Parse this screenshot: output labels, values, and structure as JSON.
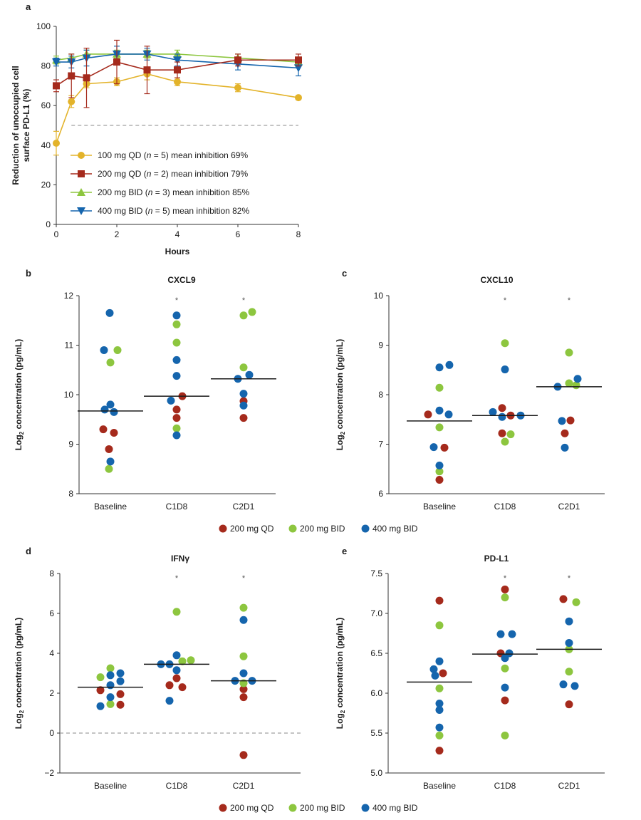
{
  "colors": {
    "qd100": "#e3b32a",
    "qd200": "#a52a1c",
    "bid200": "#8dc63f",
    "bid400": "#1565ad",
    "axis": "#333333",
    "dash": "#8a8a8a"
  },
  "chart_data": [
    {
      "panel_letter": "a",
      "type": "line",
      "xlabel": "Hours",
      "ylabel_lines": [
        "Reduction of unoccupied cell",
        "surface PD-L1 (%)"
      ],
      "xlim": [
        0,
        8
      ],
      "ylim": [
        0,
        100
      ],
      "xticks": [
        "0",
        "2",
        "4",
        "6",
        "8"
      ],
      "yticks": [
        "0",
        "20",
        "40",
        "60",
        "80",
        "100"
      ],
      "reference_line": 50,
      "series": [
        {
          "key": "qd100",
          "marker": "circle",
          "legend_pre": "100 mg QD (",
          "legend_n": "n",
          "legend_post": " = 5) mean inhibition 69%",
          "x": [
            0,
            0.5,
            1,
            2,
            3,
            4,
            6,
            8
          ],
          "y": [
            41,
            62,
            71,
            72,
            76,
            72,
            69,
            64
          ],
          "err": [
            6,
            3,
            2,
            2,
            3,
            2,
            2,
            1
          ]
        },
        {
          "key": "qd200",
          "marker": "square",
          "legend_pre": "200 mg QD (",
          "legend_n": "n",
          "legend_post": " = 2) mean inhibition 79%",
          "x": [
            0,
            0.5,
            1,
            2,
            3,
            4,
            6,
            8
          ],
          "y": [
            70,
            75,
            74,
            82,
            78,
            78,
            83,
            83
          ],
          "err": [
            3,
            11,
            15,
            11,
            12,
            4,
            3,
            3
          ]
        },
        {
          "key": "bid200",
          "marker": "triangle-up",
          "legend_pre": "200 mg BID (",
          "legend_n": "n",
          "legend_post": " = 3) mean inhibition 85%",
          "x": [
            0,
            0.5,
            1,
            2,
            3,
            4,
            6,
            8
          ],
          "y": [
            83,
            84,
            86,
            86,
            86,
            86,
            84,
            82
          ],
          "err": [
            2,
            2,
            2,
            2,
            2,
            2,
            2,
            2
          ]
        },
        {
          "key": "bid400",
          "marker": "triangle-down",
          "legend_pre": "400 mg BID (",
          "legend_n": "n",
          "legend_post": " = 5) mean inhibition 82%",
          "x": [
            0,
            0.5,
            1,
            2,
            3,
            4,
            6,
            8
          ],
          "y": [
            82,
            82,
            84,
            86,
            86,
            83,
            81,
            79
          ],
          "err": [
            2,
            3,
            4,
            4,
            3,
            3,
            3,
            4
          ]
        }
      ]
    },
    {
      "panel_letter": "b",
      "type": "scatter",
      "title": "CXCL9",
      "categories": [
        "Baseline",
        "C1D8",
        "C2D1"
      ],
      "ylim": [
        8,
        12
      ],
      "yticks": [
        "8",
        "9",
        "10",
        "11",
        "12"
      ],
      "significance": [
        "",
        "*",
        "*"
      ],
      "medians": [
        9.67,
        9.97,
        10.32
      ],
      "points": [
        {
          "c": 0,
          "dx": -10,
          "y": 9.3,
          "g": "qd200"
        },
        {
          "c": 0,
          "dx": 5,
          "y": 9.23,
          "g": "qd200"
        },
        {
          "c": 0,
          "dx": -2,
          "y": 8.9,
          "g": "qd200"
        },
        {
          "c": 0,
          "dx": 10,
          "y": 10.9,
          "g": "bid200"
        },
        {
          "c": 0,
          "dx": 0,
          "y": 10.65,
          "g": "bid200"
        },
        {
          "c": 0,
          "dx": -2,
          "y": 8.5,
          "g": "bid200"
        },
        {
          "c": 0,
          "dx": -1,
          "y": 11.65,
          "g": "bid400"
        },
        {
          "c": 0,
          "dx": -9,
          "y": 10.9,
          "g": "bid400"
        },
        {
          "c": 0,
          "dx": 0,
          "y": 9.8,
          "g": "bid400"
        },
        {
          "c": 0,
          "dx": -8,
          "y": 9.7,
          "g": "bid400"
        },
        {
          "c": 0,
          "dx": 5,
          "y": 9.65,
          "g": "bid400"
        },
        {
          "c": 0,
          "dx": 0,
          "y": 8.65,
          "g": "bid400"
        },
        {
          "c": 1,
          "dx": 8,
          "y": 9.97,
          "g": "qd200"
        },
        {
          "c": 1,
          "dx": 0,
          "y": 9.7,
          "g": "qd200"
        },
        {
          "c": 1,
          "dx": 0,
          "y": 9.53,
          "g": "qd200"
        },
        {
          "c": 1,
          "dx": 0,
          "y": 11.42,
          "g": "bid200"
        },
        {
          "c": 1,
          "dx": 0,
          "y": 11.05,
          "g": "bid200"
        },
        {
          "c": 1,
          "dx": 0,
          "y": 9.32,
          "g": "bid200"
        },
        {
          "c": 1,
          "dx": 0,
          "y": 11.6,
          "g": "bid400"
        },
        {
          "c": 1,
          "dx": 0,
          "y": 10.7,
          "g": "bid400"
        },
        {
          "c": 1,
          "dx": 0,
          "y": 10.38,
          "g": "bid400"
        },
        {
          "c": 1,
          "dx": -8,
          "y": 9.88,
          "g": "bid400"
        },
        {
          "c": 1,
          "dx": 0,
          "y": 9.18,
          "g": "bid400"
        },
        {
          "c": 2,
          "dx": 0,
          "y": 9.87,
          "g": "qd200"
        },
        {
          "c": 2,
          "dx": 0,
          "y": 9.53,
          "g": "qd200"
        },
        {
          "c": 2,
          "dx": 0,
          "y": 11.6,
          "g": "bid200"
        },
        {
          "c": 2,
          "dx": 12,
          "y": 11.67,
          "g": "bid200"
        },
        {
          "c": 2,
          "dx": 0,
          "y": 10.55,
          "g": "bid200"
        },
        {
          "c": 2,
          "dx": 8,
          "y": 10.4,
          "g": "bid400"
        },
        {
          "c": 2,
          "dx": -8,
          "y": 10.32,
          "g": "bid400"
        },
        {
          "c": 2,
          "dx": 0,
          "y": 10.02,
          "g": "bid400"
        },
        {
          "c": 2,
          "dx": 0,
          "y": 9.78,
          "g": "bid400"
        }
      ]
    },
    {
      "panel_letter": "c",
      "type": "scatter",
      "title": "CXCL10",
      "categories": [
        "Baseline",
        "C1D8",
        "C2D1"
      ],
      "ylim": [
        6,
        10
      ],
      "yticks": [
        "6",
        "7",
        "8",
        "9",
        "10"
      ],
      "significance": [
        "",
        "*",
        "*"
      ],
      "medians": [
        7.47,
        7.58,
        8.16
      ],
      "points": [
        {
          "c": 0,
          "dx": -16,
          "y": 7.6,
          "g": "qd200"
        },
        {
          "c": 0,
          "dx": 7,
          "y": 6.93,
          "g": "qd200"
        },
        {
          "c": 0,
          "dx": 0,
          "y": 6.28,
          "g": "qd200"
        },
        {
          "c": 0,
          "dx": 0,
          "y": 8.14,
          "g": "bid200"
        },
        {
          "c": 0,
          "dx": 0,
          "y": 7.34,
          "g": "bid200"
        },
        {
          "c": 0,
          "dx": 0,
          "y": 6.45,
          "g": "bid200"
        },
        {
          "c": 0,
          "dx": 0,
          "y": 8.55,
          "g": "bid400"
        },
        {
          "c": 0,
          "dx": 14,
          "y": 8.6,
          "g": "bid400"
        },
        {
          "c": 0,
          "dx": 0,
          "y": 7.68,
          "g": "bid400"
        },
        {
          "c": 0,
          "dx": 13,
          "y": 7.6,
          "g": "bid400"
        },
        {
          "c": 0,
          "dx": -8,
          "y": 6.94,
          "g": "bid400"
        },
        {
          "c": 0,
          "dx": 0,
          "y": 6.57,
          "g": "bid400"
        },
        {
          "c": 1,
          "dx": -4,
          "y": 7.73,
          "g": "qd200"
        },
        {
          "c": 1,
          "dx": 8,
          "y": 7.58,
          "g": "qd200"
        },
        {
          "c": 1,
          "dx": -4,
          "y": 7.22,
          "g": "qd200"
        },
        {
          "c": 1,
          "dx": 0,
          "y": 9.04,
          "g": "bid200"
        },
        {
          "c": 1,
          "dx": 8,
          "y": 7.2,
          "g": "bid200"
        },
        {
          "c": 1,
          "dx": 0,
          "y": 7.05,
          "g": "bid200"
        },
        {
          "c": 1,
          "dx": 0,
          "y": 8.51,
          "g": "bid400"
        },
        {
          "c": 1,
          "dx": -17,
          "y": 7.65,
          "g": "bid400"
        },
        {
          "c": 1,
          "dx": -4,
          "y": 7.55,
          "g": "bid400"
        },
        {
          "c": 1,
          "dx": 22,
          "y": 7.58,
          "g": "bid400"
        },
        {
          "c": 2,
          "dx": -6,
          "y": 7.22,
          "g": "qd200"
        },
        {
          "c": 2,
          "dx": 2,
          "y": 7.48,
          "g": "qd200"
        },
        {
          "c": 2,
          "dx": 0,
          "y": 8.85,
          "g": "bid200"
        },
        {
          "c": 2,
          "dx": 0,
          "y": 8.23,
          "g": "bid200"
        },
        {
          "c": 2,
          "dx": 10,
          "y": 8.19,
          "g": "bid200"
        },
        {
          "c": 2,
          "dx": 12,
          "y": 8.32,
          "g": "bid400"
        },
        {
          "c": 2,
          "dx": -16,
          "y": 8.16,
          "g": "bid400"
        },
        {
          "c": 2,
          "dx": -10,
          "y": 7.47,
          "g": "bid400"
        },
        {
          "c": 2,
          "dx": -6,
          "y": 6.93,
          "g": "bid400"
        }
      ]
    },
    {
      "panel_letter": "d",
      "type": "scatter",
      "title": "IFNγ",
      "categories": [
        "Baseline",
        "C1D8",
        "C2D1"
      ],
      "ylim": [
        -2,
        8
      ],
      "yticks": [
        "−2",
        "0",
        "2",
        "4",
        "6",
        "8"
      ],
      "significance": [
        "",
        "*",
        "*"
      ],
      "medians": [
        2.3,
        3.45,
        2.62
      ],
      "reference_line": 0,
      "points": [
        {
          "c": 0,
          "dx": -14,
          "y": 2.15,
          "g": "qd200"
        },
        {
          "c": 0,
          "dx": 14,
          "y": 1.95,
          "g": "qd200"
        },
        {
          "c": 0,
          "dx": 14,
          "y": 1.42,
          "g": "qd200"
        },
        {
          "c": 0,
          "dx": -14,
          "y": 2.8,
          "g": "bid200"
        },
        {
          "c": 0,
          "dx": 0,
          "y": 3.25,
          "g": "bid200"
        },
        {
          "c": 0,
          "dx": 0,
          "y": 1.45,
          "g": "bid200"
        },
        {
          "c": 0,
          "dx": 0,
          "y": 2.9,
          "g": "bid400"
        },
        {
          "c": 0,
          "dx": 14,
          "y": 3.0,
          "g": "bid400"
        },
        {
          "c": 0,
          "dx": 14,
          "y": 2.6,
          "g": "bid400"
        },
        {
          "c": 0,
          "dx": 0,
          "y": 2.4,
          "g": "bid400"
        },
        {
          "c": 0,
          "dx": 0,
          "y": 1.8,
          "g": "bid400"
        },
        {
          "c": 0,
          "dx": -14,
          "y": 1.35,
          "g": "bid400"
        },
        {
          "c": 1,
          "dx": 0,
          "y": 2.75,
          "g": "qd200"
        },
        {
          "c": 1,
          "dx": -10,
          "y": 2.4,
          "g": "qd200"
        },
        {
          "c": 1,
          "dx": 8,
          "y": 2.3,
          "g": "qd200"
        },
        {
          "c": 1,
          "dx": 0,
          "y": 6.08,
          "g": "bid200"
        },
        {
          "c": 1,
          "dx": 20,
          "y": 3.65,
          "g": "bid200"
        },
        {
          "c": 1,
          "dx": 8,
          "y": 3.6,
          "g": "bid200"
        },
        {
          "c": 1,
          "dx": 0,
          "y": 3.9,
          "g": "bid400"
        },
        {
          "c": 1,
          "dx": -22,
          "y": 3.45,
          "g": "bid400"
        },
        {
          "c": 1,
          "dx": -10,
          "y": 3.45,
          "g": "bid400"
        },
        {
          "c": 1,
          "dx": 0,
          "y": 3.15,
          "g": "bid400"
        },
        {
          "c": 1,
          "dx": -10,
          "y": 1.62,
          "g": "bid400"
        },
        {
          "c": 2,
          "dx": 0,
          "y": 2.2,
          "g": "qd200"
        },
        {
          "c": 2,
          "dx": 0,
          "y": 1.8,
          "g": "qd200"
        },
        {
          "c": 2,
          "dx": 0,
          "y": -1.1,
          "g": "qd200"
        },
        {
          "c": 2,
          "dx": 0,
          "y": 6.28,
          "g": "bid200"
        },
        {
          "c": 2,
          "dx": 0,
          "y": 3.85,
          "g": "bid200"
        },
        {
          "c": 2,
          "dx": 0,
          "y": 2.5,
          "g": "bid200"
        },
        {
          "c": 2,
          "dx": 0,
          "y": 5.67,
          "g": "bid400"
        },
        {
          "c": 2,
          "dx": 0,
          "y": 3.0,
          "g": "bid400"
        },
        {
          "c": 2,
          "dx": -12,
          "y": 2.62,
          "g": "bid400"
        },
        {
          "c": 2,
          "dx": 12,
          "y": 2.62,
          "g": "bid400"
        }
      ]
    },
    {
      "panel_letter": "e",
      "type": "scatter",
      "title": "PD-L1",
      "categories": [
        "Baseline",
        "C1D8",
        "C2D1"
      ],
      "ylim": [
        5.0,
        7.5
      ],
      "yticks": [
        "5.0",
        "5.5",
        "6.0",
        "6.5",
        "7.0",
        "7.5"
      ],
      "significance": [
        "",
        "*",
        "*"
      ],
      "medians": [
        6.14,
        6.49,
        6.55
      ],
      "points": [
        {
          "c": 0,
          "dx": 0,
          "y": 7.16,
          "g": "qd200"
        },
        {
          "c": 0,
          "dx": 5,
          "y": 6.25,
          "g": "qd200"
        },
        {
          "c": 0,
          "dx": 0,
          "y": 5.28,
          "g": "qd200"
        },
        {
          "c": 0,
          "dx": 0,
          "y": 6.85,
          "g": "bid200"
        },
        {
          "c": 0,
          "dx": 0,
          "y": 6.06,
          "g": "bid200"
        },
        {
          "c": 0,
          "dx": 0,
          "y": 5.47,
          "g": "bid200"
        },
        {
          "c": 0,
          "dx": 0,
          "y": 6.4,
          "g": "bid400"
        },
        {
          "c": 0,
          "dx": -8,
          "y": 6.3,
          "g": "bid400"
        },
        {
          "c": 0,
          "dx": -6,
          "y": 6.22,
          "g": "bid400"
        },
        {
          "c": 0,
          "dx": 0,
          "y": 5.87,
          "g": "bid400"
        },
        {
          "c": 0,
          "dx": 0,
          "y": 5.79,
          "g": "bid400"
        },
        {
          "c": 0,
          "dx": 0,
          "y": 5.57,
          "g": "bid400"
        },
        {
          "c": 1,
          "dx": 0,
          "y": 7.3,
          "g": "qd200"
        },
        {
          "c": 1,
          "dx": -6,
          "y": 6.5,
          "g": "qd200"
        },
        {
          "c": 1,
          "dx": 0,
          "y": 5.91,
          "g": "qd200"
        },
        {
          "c": 1,
          "dx": 0,
          "y": 7.2,
          "g": "bid200"
        },
        {
          "c": 1,
          "dx": 0,
          "y": 6.31,
          "g": "bid200"
        },
        {
          "c": 1,
          "dx": 0,
          "y": 5.47,
          "g": "bid200"
        },
        {
          "c": 1,
          "dx": -6,
          "y": 6.74,
          "g": "bid400"
        },
        {
          "c": 1,
          "dx": 10,
          "y": 6.74,
          "g": "bid400"
        },
        {
          "c": 1,
          "dx": 6,
          "y": 6.5,
          "g": "bid400"
        },
        {
          "c": 1,
          "dx": 0,
          "y": 6.44,
          "g": "bid400"
        },
        {
          "c": 1,
          "dx": 0,
          "y": 6.07,
          "g": "bid400"
        },
        {
          "c": 2,
          "dx": -8,
          "y": 7.18,
          "g": "qd200"
        },
        {
          "c": 2,
          "dx": 0,
          "y": 5.86,
          "g": "qd200"
        },
        {
          "c": 2,
          "dx": 10,
          "y": 7.14,
          "g": "bid200"
        },
        {
          "c": 2,
          "dx": 0,
          "y": 6.55,
          "g": "bid200"
        },
        {
          "c": 2,
          "dx": 0,
          "y": 6.27,
          "g": "bid200"
        },
        {
          "c": 2,
          "dx": 0,
          "y": 6.9,
          "g": "bid400"
        },
        {
          "c": 2,
          "dx": 0,
          "y": 6.63,
          "g": "bid400"
        },
        {
          "c": 2,
          "dx": -8,
          "y": 6.11,
          "g": "bid400"
        },
        {
          "c": 2,
          "dx": 8,
          "y": 6.09,
          "g": "bid400"
        }
      ]
    }
  ],
  "scatter_ylabel": {
    "pre": "Log",
    "sub": "2",
    "post": " concentration (pg/mL)"
  },
  "dot_legend": [
    {
      "key": "qd200",
      "label": "200 mg QD"
    },
    {
      "key": "bid200",
      "label": "200 mg BID"
    },
    {
      "key": "bid400",
      "label": "400 mg BID"
    }
  ]
}
